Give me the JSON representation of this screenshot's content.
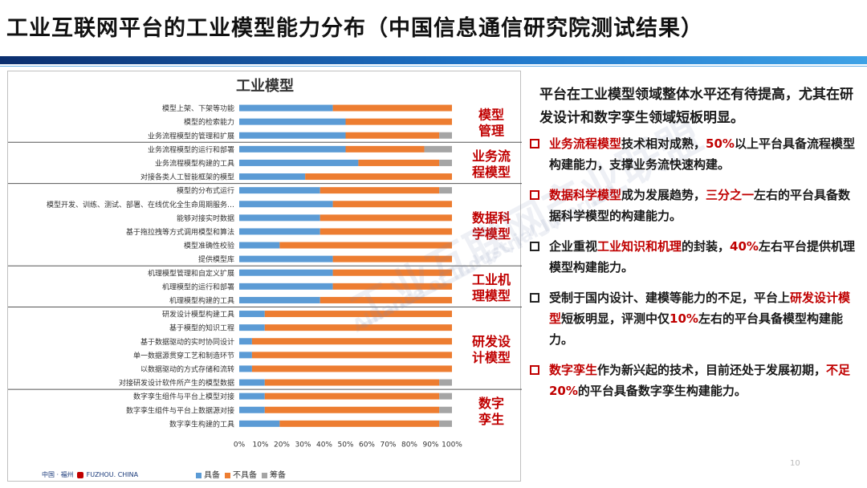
{
  "title": "工业互联网平台的工业模型能力分布（中国信息通信研究院测试结果）",
  "chart_data": {
    "type": "bar",
    "orientation": "horizontal",
    "stacked": true,
    "title": "工业模型",
    "categories": [
      "模型上架、下架等功能",
      "模型的检索能力",
      "业务流程模型的管理和扩展",
      "业务流程模型的运行和部署",
      "业务流程模型构建的工具",
      "对接各类人工智能框架的模型",
      "模型的分布式运行",
      "模型开发、训练、测试、部署、在线优化全生命周期服务…",
      "能够对接实时数据",
      "基于拖拉拽等方式调用模型和算法",
      "模型准确性校验",
      "提供模型库",
      "机理模型管理和自定义扩展",
      "机理模型的运行和部署",
      "机理模型构建的工具",
      "研发设计模型构建工具",
      "基于模型的知识工程",
      "基于数据驱动的实时协同设计",
      "单一数据源贯穿工艺和制造环节",
      "以数据驱动的方式存储和流转",
      "对接研发设计软件所产生的模型数据",
      "数字孪生组件与平台上模型对接",
      "数字孪生组件与平台上数据源对接",
      "数字孪生构建的工具"
    ],
    "series": [
      {
        "name": "具备",
        "color": "#5b9bd5",
        "values": [
          44,
          50,
          50,
          50,
          56,
          31,
          38,
          44,
          38,
          38,
          19,
          44,
          44,
          44,
          38,
          12,
          12,
          6,
          6,
          6,
          12,
          12,
          12,
          19
        ]
      },
      {
        "name": "不具备",
        "color": "#ed7d31",
        "values": [
          56,
          50,
          44,
          37,
          38,
          69,
          56,
          56,
          62,
          62,
          81,
          56,
          56,
          56,
          62,
          88,
          88,
          94,
          94,
          94,
          82,
          82,
          82,
          75
        ]
      },
      {
        "name": "筹备",
        "color": "#a5a5a5",
        "values": [
          0,
          0,
          6,
          13,
          6,
          0,
          6,
          0,
          0,
          0,
          0,
          0,
          0,
          0,
          0,
          0,
          0,
          0,
          0,
          0,
          6,
          6,
          6,
          6
        ]
      }
    ],
    "groups": [
      {
        "label": "模型管理",
        "lines": [
          "模型",
          "管理"
        ],
        "rows": [
          0,
          2
        ]
      },
      {
        "label": "业务流程模型",
        "lines": [
          "业务流",
          "程模型"
        ],
        "rows": [
          3,
          5
        ]
      },
      {
        "label": "数据科学模型",
        "lines": [
          "数据科",
          "学模型"
        ],
        "rows": [
          6,
          11
        ]
      },
      {
        "label": "工业机理模型",
        "lines": [
          "工业机",
          "理模型"
        ],
        "rows": [
          12,
          14
        ]
      },
      {
        "label": "研发设计模型",
        "lines": [
          "研发设",
          "计模型"
        ],
        "rows": [
          15,
          20
        ]
      },
      {
        "label": "数字孪生",
        "lines": [
          "数字",
          "孪生"
        ],
        "rows": [
          21,
          23
        ]
      }
    ],
    "xlim": [
      0,
      100
    ],
    "xticks": [
      "0%",
      "10%",
      "20%",
      "30%",
      "40%",
      "50%",
      "60%",
      "70%",
      "80%",
      "90%",
      "100%"
    ],
    "legend_position": "bottom",
    "group_label_color": "#c00000"
  },
  "watermark": {
    "main": "工业互联网产业联盟",
    "sub": "Alliance of Industrial Internet"
  },
  "footer": {
    "logo_text": "中国 · 福州",
    "logo_en": "FUZHOU. CHINA"
  },
  "side": {
    "intro": "平台在工业模型领域整体水平还有待提高，尤其在研发设计和数字孪生领域短板明显。",
    "bullets": [
      {
        "style": "red",
        "parts": [
          {
            "t": "业务流程模型",
            "hl": true
          },
          {
            "t": "技术相对成熟，",
            "hl": false
          },
          {
            "t": "50%",
            "hl": true
          },
          {
            "t": "以上平台具备流程模型构建能力，支撑业务流快速构建。",
            "hl": false
          }
        ]
      },
      {
        "style": "red",
        "parts": [
          {
            "t": "数据科学模型",
            "hl": true
          },
          {
            "t": "成为发展趋势，",
            "hl": false
          },
          {
            "t": "三分之一",
            "hl": true
          },
          {
            "t": "左右的平台具备数据科学模型的构建能力。",
            "hl": false
          }
        ]
      },
      {
        "style": "black",
        "parts": [
          {
            "t": "企业重视",
            "hl": false
          },
          {
            "t": "工业知识和机理",
            "hl": true
          },
          {
            "t": "的封装，",
            "hl": false
          },
          {
            "t": "40%",
            "hl": true
          },
          {
            "t": "左右平台提供机理模型构建能力。",
            "hl": false
          }
        ]
      },
      {
        "style": "black",
        "parts": [
          {
            "t": "受制于国内设计、建模等能力的不足，平台上",
            "hl": false
          },
          {
            "t": "研发设计模型",
            "hl": true
          },
          {
            "t": "短板明显，评测中仅",
            "hl": false
          },
          {
            "t": "10%",
            "hl": true
          },
          {
            "t": "左右的平台具备模型构建能力。",
            "hl": false
          }
        ]
      },
      {
        "style": "red",
        "parts": [
          {
            "t": "数字孪生",
            "hl": true
          },
          {
            "t": "作为新兴起的技术，目前还处于发展初期，",
            "hl": false
          },
          {
            "t": "不足20%",
            "hl": true
          },
          {
            "t": "的平台具备数字孪生构建能力。",
            "hl": false
          }
        ]
      }
    ]
  },
  "page_number": "10"
}
